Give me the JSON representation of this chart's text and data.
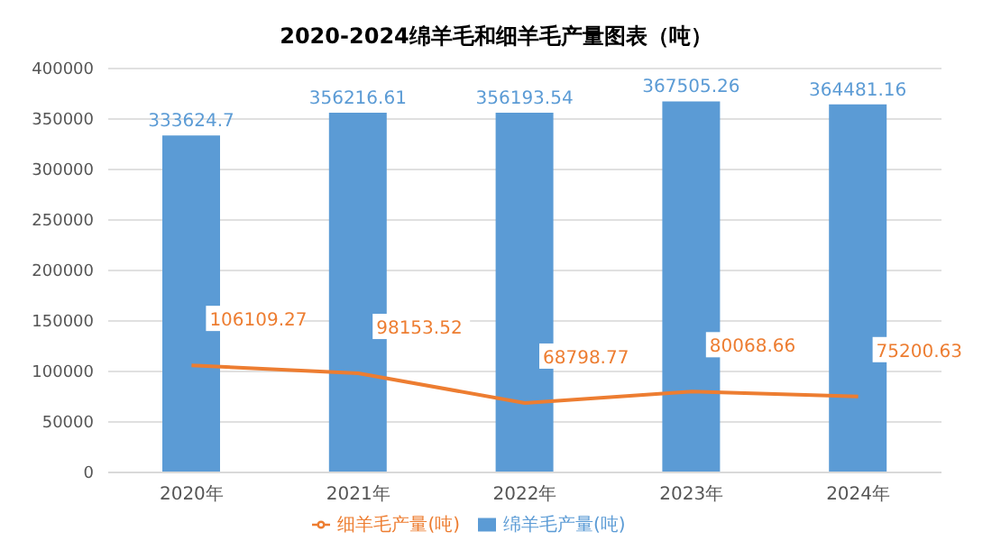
{
  "chart_data": {
    "type": "bar",
    "title": "2020-2024绵羊毛和细羊毛产量图表（吨）",
    "categories": [
      "2020年",
      "2021年",
      "2022年",
      "2023年",
      "2024年"
    ],
    "series": [
      {
        "name": "绵羊毛产量(吨)",
        "color": "#5b9bd5",
        "values": [
          333624.7,
          356216.61,
          356193.54,
          367505.26,
          364481.16
        ]
      },
      {
        "name": "细羊毛产量(吨)",
        "type": "line",
        "color": "#ed7d31",
        "values": [
          106109.27,
          98153.52,
          68798.77,
          80068.66,
          75200.63
        ]
      }
    ],
    "ylim": [
      0,
      400000
    ],
    "yticks": [
      0,
      50000,
      100000,
      150000,
      200000,
      250000,
      300000,
      350000,
      400000
    ],
    "grid": "y",
    "legend": "bottom",
    "data_labels": true,
    "marker": "none",
    "line_style": "solid"
  }
}
